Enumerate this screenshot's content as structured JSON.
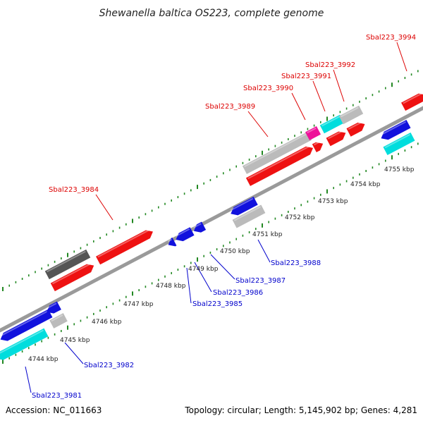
{
  "header": {
    "title": "Shewanella baltica OS223, complete genome"
  },
  "footer": {
    "accession": "Accession: NC_011663",
    "topology": "Topology: circular; Length: 5,145,902 bp; Genes: 4,281"
  },
  "colors": {
    "background": "#ffffff",
    "backbone": "#999999",
    "tick": "#228822",
    "forward_gene": "#ee1111",
    "reverse_gene": "#1111dd",
    "rna_gene": "#00dddd",
    "pseudo_gene": "#bbbbbb",
    "dark_feature": "#555555",
    "magenta_feature": "#ee1199",
    "label_top": "#dd0000",
    "label_bottom": "#0000cc"
  },
  "kbp_labels": [
    "4744 kbp",
    "4745 kbp",
    "4746 kbp",
    "4747 kbp",
    "4748 kbp",
    "4749 kbp",
    "4750 kbp",
    "4751 kbp",
    "4752 kbp",
    "4753 kbp",
    "4754 kbp",
    "4755 kbp"
  ],
  "top_gene_labels": [
    "Sbal223_3984",
    "Sbal223_3989",
    "Sbal223_3990",
    "Sbal223_3991",
    "Sbal223_3992",
    "Sbal223_3994"
  ],
  "bottom_gene_labels": [
    "Sbal223_3981",
    "Sbal223_3982",
    "Sbal223_3985",
    "Sbal223_3986",
    "Sbal223_3987",
    "Sbal223_3988"
  ]
}
